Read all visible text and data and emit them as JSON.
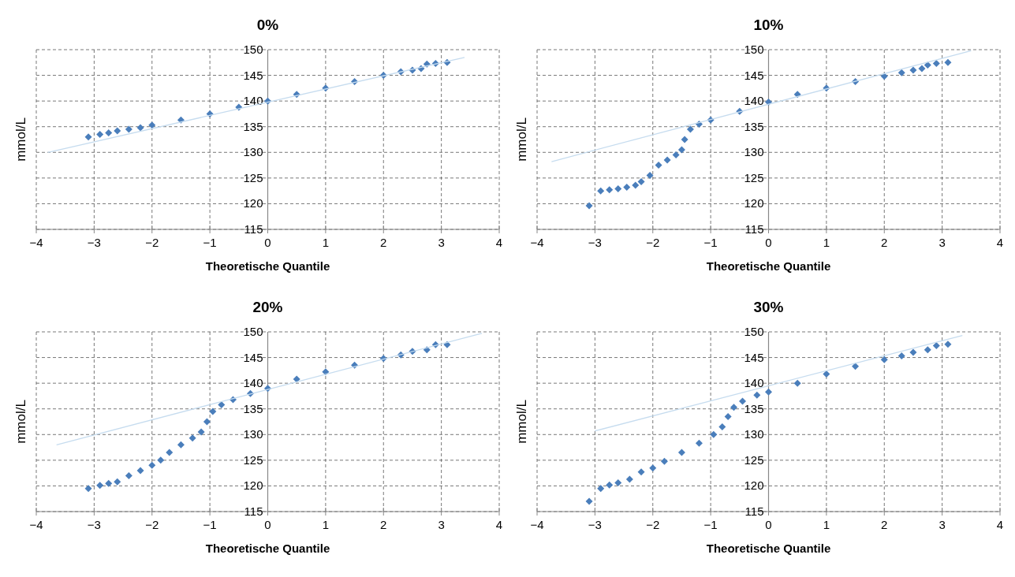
{
  "chart_data": [
    {
      "type": "scatter",
      "title": "0%",
      "xlabel": "Theoretische Quantile",
      "ylabel": "mmol/L",
      "xlim": [
        -4,
        4
      ],
      "ylim": [
        115,
        150
      ],
      "xticks": [
        -4,
        -3,
        -2,
        -1,
        0,
        1,
        2,
        3,
        4
      ],
      "yticks": [
        115,
        120,
        125,
        130,
        135,
        140,
        145,
        150
      ],
      "grid": true,
      "marker": "diamond",
      "series": [
        {
          "color": "#4a7ebb",
          "x": [
            -3.1,
            -2.9,
            -2.75,
            -2.6,
            -2.4,
            -2.2,
            -2,
            -1.5,
            -1,
            -0.5,
            0,
            0.5,
            1,
            1.5,
            2,
            2.3,
            2.5,
            2.65,
            2.75,
            2.9,
            3.1
          ],
          "values": [
            133,
            133.5,
            133.8,
            134.2,
            134.5,
            134.8,
            135.3,
            136.3,
            137.5,
            138.8,
            140,
            141.3,
            142.5,
            143.8,
            145,
            145.7,
            146,
            146.3,
            147.2,
            147.3,
            147.5
          ]
        },
        {
          "type": "line",
          "color": "#c6dcef",
          "marker": "none",
          "x": [
            -3.8,
            3.4
          ],
          "values": [
            130,
            148.5
          ]
        }
      ]
    },
    {
      "type": "scatter",
      "title": "10%",
      "xlabel": "Theoretische Quantile",
      "ylabel": "mmol/L",
      "xlim": [
        -4,
        4
      ],
      "ylim": [
        115,
        150
      ],
      "xticks": [
        -4,
        -3,
        -2,
        -1,
        0,
        1,
        2,
        3,
        4
      ],
      "yticks": [
        115,
        120,
        125,
        130,
        135,
        140,
        145,
        150
      ],
      "grid": true,
      "marker": "diamond",
      "series": [
        {
          "color": "#4a7ebb",
          "x": [
            -3.1,
            -2.9,
            -2.75,
            -2.6,
            -2.45,
            -2.3,
            -2.2,
            -2.05,
            -1.9,
            -1.75,
            -1.6,
            -1.5,
            -1.45,
            -1.35,
            -1.2,
            -1,
            -0.5,
            0,
            0.5,
            1,
            1.5,
            2,
            2.3,
            2.5,
            2.65,
            2.75,
            2.9,
            3.1
          ],
          "values": [
            119.6,
            122.5,
            122.7,
            122.9,
            123.2,
            123.6,
            124.3,
            125.5,
            127.5,
            128.5,
            129.5,
            130.5,
            132.5,
            134.5,
            135.5,
            136.3,
            138,
            139.8,
            141.3,
            142.5,
            143.8,
            144.8,
            145.5,
            146,
            146.3,
            147,
            147.3,
            147.5
          ]
        },
        {
          "type": "line",
          "color": "#c6dcef",
          "marker": "none",
          "x": [
            -3.75,
            3.5
          ],
          "values": [
            128.2,
            149.8
          ]
        }
      ]
    },
    {
      "type": "scatter",
      "title": "20%",
      "xlabel": "Theoretische Quantile",
      "ylabel": "mmol/L",
      "xlim": [
        -4,
        4
      ],
      "ylim": [
        115,
        150
      ],
      "xticks": [
        -4,
        -3,
        -2,
        -1,
        0,
        1,
        2,
        3,
        4
      ],
      "yticks": [
        115,
        120,
        125,
        130,
        135,
        140,
        145,
        150
      ],
      "grid": true,
      "marker": "diamond",
      "series": [
        {
          "color": "#4a7ebb",
          "x": [
            -3.1,
            -2.9,
            -2.75,
            -2.6,
            -2.4,
            -2.2,
            -2,
            -1.85,
            -1.7,
            -1.5,
            -1.3,
            -1.15,
            -1.05,
            -0.95,
            -0.8,
            -0.6,
            -0.3,
            0,
            0.5,
            1,
            1.5,
            2,
            2.3,
            2.5,
            2.75,
            2.9,
            3.1
          ],
          "values": [
            119.5,
            120.1,
            120.5,
            120.8,
            122,
            123,
            124,
            125,
            126.5,
            128,
            129.3,
            130.5,
            132.5,
            134.5,
            135.8,
            136.8,
            138,
            139,
            140.8,
            142.2,
            143.5,
            144.8,
            145.5,
            146.2,
            146.5,
            147.5,
            147.5
          ]
        },
        {
          "type": "line",
          "color": "#c6dcef",
          "marker": "none",
          "x": [
            -3.65,
            3.7
          ],
          "values": [
            128,
            149.7
          ]
        }
      ]
    },
    {
      "type": "scatter",
      "title": "30%",
      "xlabel": "Theoretische Quantile",
      "ylabel": "mmol/L",
      "xlim": [
        -4,
        4
      ],
      "ylim": [
        115,
        150
      ],
      "xticks": [
        -4,
        -3,
        -2,
        -1,
        0,
        1,
        2,
        3,
        4
      ],
      "yticks": [
        115,
        120,
        125,
        130,
        135,
        140,
        145,
        150
      ],
      "grid": true,
      "marker": "diamond",
      "series": [
        {
          "color": "#4a7ebb",
          "x": [
            -3.1,
            -2.9,
            -2.75,
            -2.6,
            -2.4,
            -2.2,
            -2,
            -1.8,
            -1.5,
            -1.2,
            -0.95,
            -0.8,
            -0.7,
            -0.6,
            -0.45,
            -0.2,
            0,
            0.5,
            1,
            1.5,
            2,
            2.3,
            2.5,
            2.75,
            2.9,
            3.1
          ],
          "values": [
            117,
            119.5,
            120.2,
            120.6,
            121.3,
            122.7,
            123.5,
            124.8,
            126.5,
            128.3,
            130,
            131.5,
            133.5,
            135.3,
            136.5,
            137.7,
            138.3,
            140,
            141.8,
            143.3,
            144.6,
            145.3,
            146,
            146.5,
            147.3,
            147.6
          ]
        },
        {
          "type": "line",
          "color": "#c6dcef",
          "marker": "none",
          "x": [
            -3,
            3.35
          ],
          "values": [
            130.7,
            149.3
          ]
        }
      ]
    }
  ]
}
